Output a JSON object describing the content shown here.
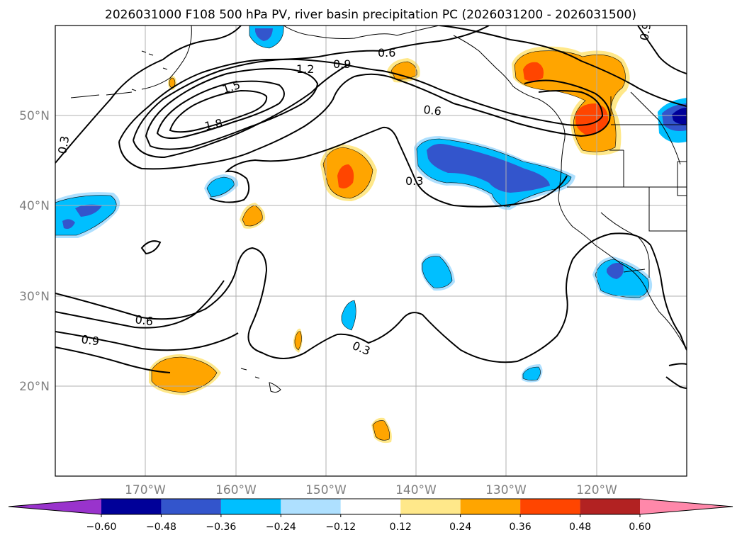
{
  "title": "2026031000 F108 500 hPa PV, river basin precipitation PC (2026031200 - 2026031500)",
  "axes": {
    "lat_labels": [
      "50°N",
      "40°N",
      "30°N",
      "20°N"
    ],
    "lon_labels": [
      "170°W",
      "160°W",
      "150°W",
      "140°W",
      "130°W",
      "120°W"
    ]
  },
  "contour_labels": [
    "0.3",
    "0.6",
    "0.9",
    "1.2",
    "1.5",
    "1.8",
    "0.6",
    "0.3",
    "0.6",
    "0.9",
    "0.3",
    "0.9"
  ],
  "colorbar": {
    "ticks": [
      "−0.60",
      "−0.48",
      "−0.36",
      "−0.24",
      "−0.12",
      "0.12",
      "0.24",
      "0.36",
      "0.48",
      "0.60"
    ],
    "colors": [
      "#9933cc",
      "#000099",
      "#3355cc",
      "#00bfff",
      "#aee0ff",
      "#ffffff",
      "#ffe88a",
      "#ffa500",
      "#ff4500",
      "#b22222",
      "#ff88aa"
    ]
  },
  "chart_data": {
    "type": "map",
    "title": "2026031000 F108 500 hPa PV, river basin precipitation PC (2026031200 - 2026031500)",
    "contour_field": "500 hPa PV",
    "contour_levels": [
      0.3,
      0.6,
      0.9,
      1.2,
      1.5,
      1.8
    ],
    "shaded_field": "river basin precipitation PC",
    "shading_levels": [
      -0.6,
      -0.48,
      -0.36,
      -0.24,
      -0.12,
      0.12,
      0.24,
      0.36,
      0.48,
      0.6
    ],
    "lat_range": [
      10,
      60
    ],
    "lon_range": [
      -180,
      -110
    ]
  }
}
